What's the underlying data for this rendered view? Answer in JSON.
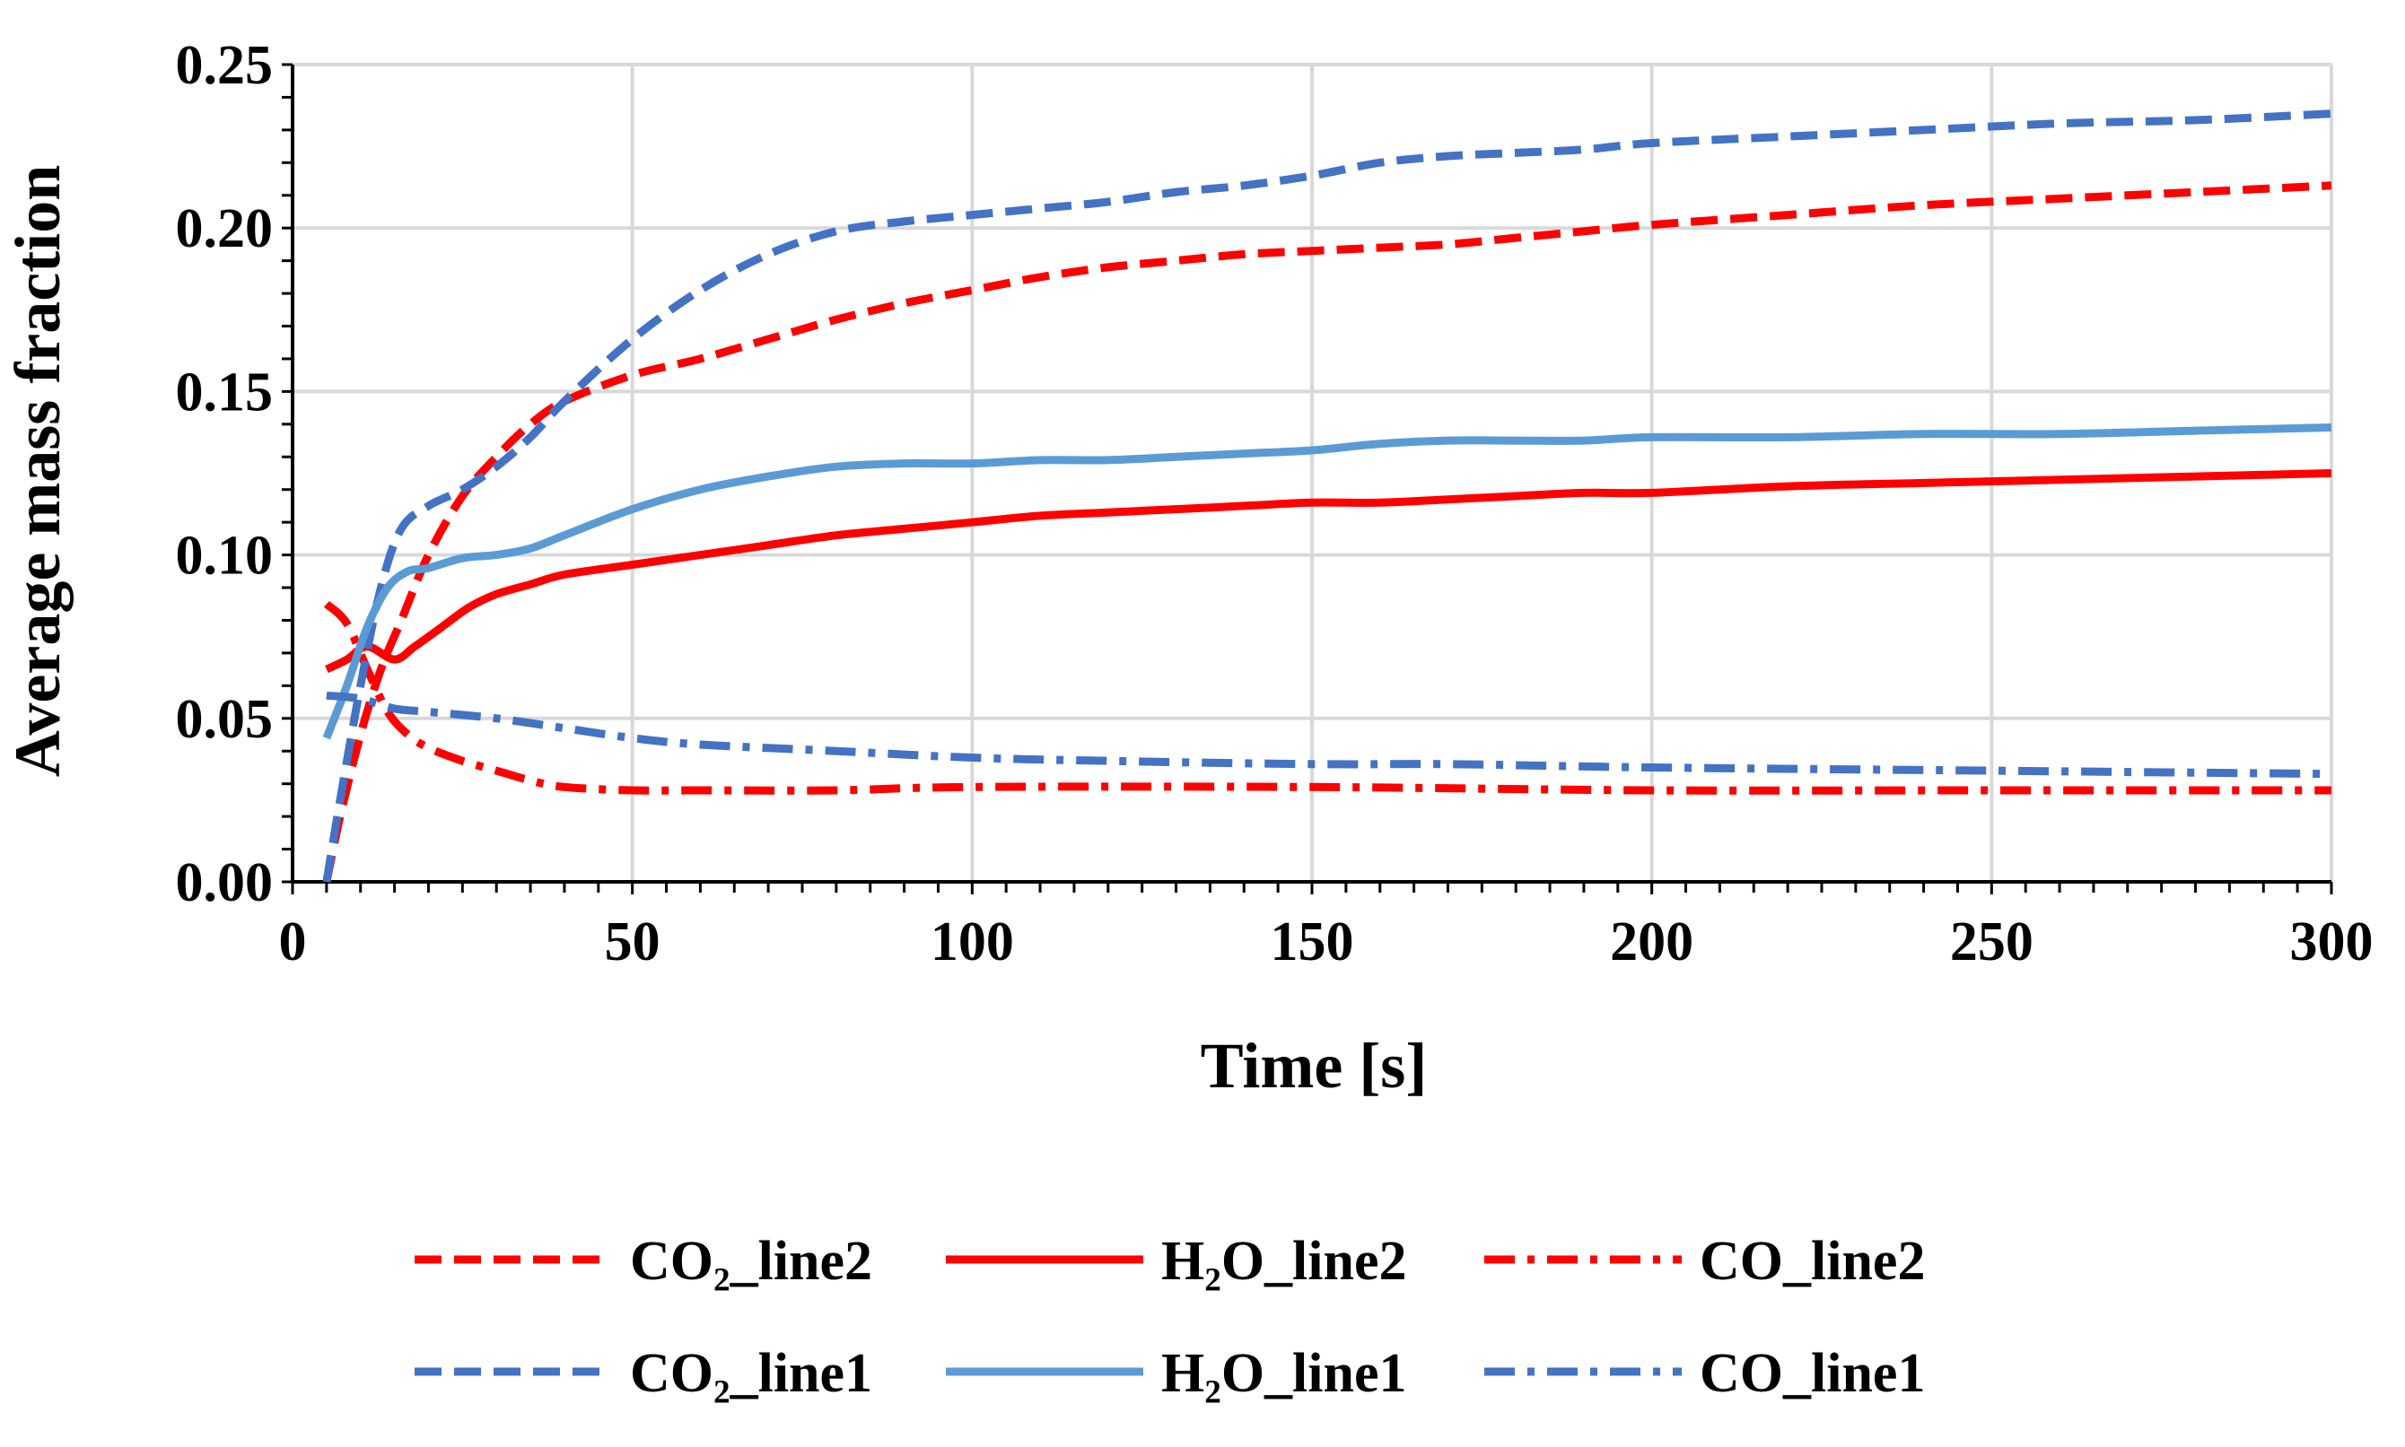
{
  "chart_data": {
    "type": "line",
    "title": "",
    "xlabel": "Time [s]",
    "ylabel": "Average mass fraction",
    "xlim": [
      0,
      300
    ],
    "ylim": [
      0,
      0.25
    ],
    "x_ticks": [
      0,
      50,
      100,
      150,
      200,
      250,
      300
    ],
    "x_tick_labels": [
      "0",
      "50",
      "100",
      "150",
      "200",
      "250",
      "300"
    ],
    "y_ticks": [
      0,
      0.05,
      0.1,
      0.15,
      0.2,
      0.25
    ],
    "y_tick_labels": [
      "0.00",
      "0.05",
      "0.10",
      "0.15",
      "0.20",
      "0.25"
    ],
    "x_minor_step": 5,
    "y_minor_step": 0.01,
    "grid": true,
    "legend_position": "bottom",
    "series": [
      {
        "id": "co2-line2",
        "name": "CO₂_line2",
        "color": "#ff0000",
        "style": "dashed",
        "points": [
          [
            5,
            0.0
          ],
          [
            7,
            0.02
          ],
          [
            10,
            0.045
          ],
          [
            13,
            0.065
          ],
          [
            16,
            0.08
          ],
          [
            20,
            0.1
          ],
          [
            25,
            0.118
          ],
          [
            30,
            0.13
          ],
          [
            35,
            0.14
          ],
          [
            40,
            0.147
          ],
          [
            50,
            0.155
          ],
          [
            60,
            0.16
          ],
          [
            70,
            0.166
          ],
          [
            80,
            0.172
          ],
          [
            90,
            0.177
          ],
          [
            100,
            0.181
          ],
          [
            110,
            0.185
          ],
          [
            120,
            0.188
          ],
          [
            130,
            0.19
          ],
          [
            140,
            0.192
          ],
          [
            150,
            0.193
          ],
          [
            160,
            0.194
          ],
          [
            170,
            0.195
          ],
          [
            180,
            0.197
          ],
          [
            190,
            0.199
          ],
          [
            200,
            0.201
          ],
          [
            220,
            0.204
          ],
          [
            240,
            0.207
          ],
          [
            260,
            0.209
          ],
          [
            280,
            0.211
          ],
          [
            300,
            0.213
          ]
        ]
      },
      {
        "id": "h2o-line2",
        "name": "H₂O_line2",
        "color": "#ff0000",
        "style": "solid",
        "points": [
          [
            5,
            0.065
          ],
          [
            8,
            0.068
          ],
          [
            11,
            0.072
          ],
          [
            15,
            0.068
          ],
          [
            18,
            0.072
          ],
          [
            22,
            0.078
          ],
          [
            26,
            0.084
          ],
          [
            30,
            0.088
          ],
          [
            35,
            0.091
          ],
          [
            40,
            0.094
          ],
          [
            50,
            0.097
          ],
          [
            60,
            0.1
          ],
          [
            70,
            0.103
          ],
          [
            80,
            0.106
          ],
          [
            90,
            0.108
          ],
          [
            100,
            0.11
          ],
          [
            110,
            0.112
          ],
          [
            120,
            0.113
          ],
          [
            130,
            0.114
          ],
          [
            140,
            0.115
          ],
          [
            150,
            0.116
          ],
          [
            160,
            0.116
          ],
          [
            170,
            0.117
          ],
          [
            180,
            0.118
          ],
          [
            190,
            0.119
          ],
          [
            200,
            0.119
          ],
          [
            220,
            0.121
          ],
          [
            240,
            0.122
          ],
          [
            260,
            0.123
          ],
          [
            280,
            0.124
          ],
          [
            300,
            0.125
          ]
        ]
      },
      {
        "id": "co-line2",
        "name": "CO_line2",
        "color": "#ff0000",
        "style": "dashdot",
        "points": [
          [
            5,
            0.085
          ],
          [
            8,
            0.079
          ],
          [
            11,
            0.065
          ],
          [
            14,
            0.052
          ],
          [
            17,
            0.045
          ],
          [
            20,
            0.041
          ],
          [
            25,
            0.037
          ],
          [
            30,
            0.034
          ],
          [
            35,
            0.031
          ],
          [
            40,
            0.029
          ],
          [
            50,
            0.028
          ],
          [
            60,
            0.028
          ],
          [
            80,
            0.028
          ],
          [
            100,
            0.029
          ],
          [
            150,
            0.029
          ],
          [
            200,
            0.028
          ],
          [
            250,
            0.028
          ],
          [
            300,
            0.028
          ]
        ]
      },
      {
        "id": "co2-line1",
        "name": "CO₂_line1",
        "color": "#4472c4",
        "style": "dashed",
        "points": [
          [
            5,
            0.0
          ],
          [
            7,
            0.025
          ],
          [
            10,
            0.06
          ],
          [
            13,
            0.09
          ],
          [
            16,
            0.108
          ],
          [
            20,
            0.115
          ],
          [
            25,
            0.12
          ],
          [
            30,
            0.127
          ],
          [
            35,
            0.136
          ],
          [
            40,
            0.147
          ],
          [
            50,
            0.166
          ],
          [
            60,
            0.181
          ],
          [
            70,
            0.192
          ],
          [
            80,
            0.199
          ],
          [
            90,
            0.202
          ],
          [
            100,
            0.204
          ],
          [
            110,
            0.206
          ],
          [
            120,
            0.208
          ],
          [
            130,
            0.211
          ],
          [
            140,
            0.213
          ],
          [
            150,
            0.216
          ],
          [
            160,
            0.22
          ],
          [
            170,
            0.222
          ],
          [
            180,
            0.223
          ],
          [
            190,
            0.224
          ],
          [
            200,
            0.226
          ],
          [
            220,
            0.228
          ],
          [
            240,
            0.23
          ],
          [
            260,
            0.232
          ],
          [
            280,
            0.233
          ],
          [
            300,
            0.235
          ]
        ]
      },
      {
        "id": "h2o-line1",
        "name": "H₂O_line1",
        "color": "#5b9bd5",
        "style": "solid",
        "points": [
          [
            5,
            0.044
          ],
          [
            8,
            0.06
          ],
          [
            11,
            0.078
          ],
          [
            14,
            0.09
          ],
          [
            17,
            0.095
          ],
          [
            20,
            0.096
          ],
          [
            25,
            0.099
          ],
          [
            30,
            0.1
          ],
          [
            35,
            0.102
          ],
          [
            40,
            0.106
          ],
          [
            50,
            0.114
          ],
          [
            60,
            0.12
          ],
          [
            70,
            0.124
          ],
          [
            80,
            0.127
          ],
          [
            90,
            0.128
          ],
          [
            100,
            0.128
          ],
          [
            110,
            0.129
          ],
          [
            120,
            0.129
          ],
          [
            130,
            0.13
          ],
          [
            140,
            0.131
          ],
          [
            150,
            0.132
          ],
          [
            160,
            0.134
          ],
          [
            170,
            0.135
          ],
          [
            180,
            0.135
          ],
          [
            190,
            0.135
          ],
          [
            200,
            0.136
          ],
          [
            220,
            0.136
          ],
          [
            240,
            0.137
          ],
          [
            260,
            0.137
          ],
          [
            280,
            0.138
          ],
          [
            300,
            0.139
          ]
        ]
      },
      {
        "id": "co-line1",
        "name": "CO_line1",
        "color": "#4472c4",
        "style": "dashdot",
        "points": [
          [
            5,
            0.057
          ],
          [
            10,
            0.056
          ],
          [
            15,
            0.053
          ],
          [
            20,
            0.052
          ],
          [
            30,
            0.05
          ],
          [
            40,
            0.047
          ],
          [
            50,
            0.044
          ],
          [
            60,
            0.042
          ],
          [
            80,
            0.04
          ],
          [
            100,
            0.038
          ],
          [
            120,
            0.037
          ],
          [
            150,
            0.036
          ],
          [
            170,
            0.036
          ],
          [
            200,
            0.035
          ],
          [
            250,
            0.034
          ],
          [
            300,
            0.033
          ]
        ]
      }
    ]
  }
}
